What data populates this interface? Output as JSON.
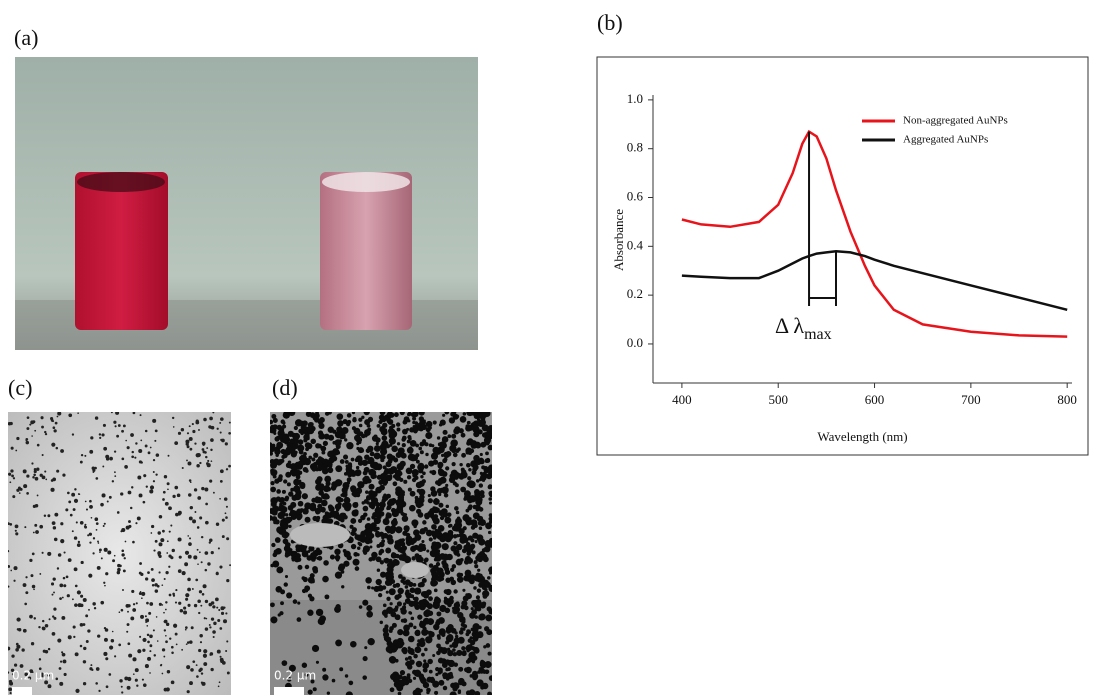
{
  "panels": {
    "a": {
      "label": "(a)"
    },
    "b": {
      "label": "(b)"
    },
    "c": {
      "label": "(c)",
      "scale_bar": "0.2 µm"
    },
    "d": {
      "label": "(d)",
      "scale_bar": "0.2 µm"
    }
  },
  "chart_data": {
    "type": "line",
    "x_label": "Wavelength (nm)",
    "y_label": "Absorbance",
    "x": [
      400,
      420,
      450,
      480,
      500,
      515,
      525,
      532,
      540,
      550,
      560,
      575,
      590,
      600,
      620,
      650,
      700,
      750,
      800
    ],
    "series": [
      {
        "name": "Non-aggregated AuNPs",
        "color": "#e8141b",
        "values": [
          0.51,
          0.49,
          0.48,
          0.5,
          0.57,
          0.7,
          0.82,
          0.87,
          0.85,
          0.76,
          0.63,
          0.46,
          0.32,
          0.24,
          0.14,
          0.08,
          0.05,
          0.035,
          0.03
        ]
      },
      {
        "name": "Aggregated AuNPs",
        "color": "#111111",
        "values": [
          0.28,
          0.275,
          0.27,
          0.27,
          0.3,
          0.33,
          0.35,
          0.36,
          0.37,
          0.375,
          0.38,
          0.375,
          0.36,
          0.345,
          0.32,
          0.29,
          0.24,
          0.19,
          0.14
        ]
      }
    ],
    "xlim": [
      370,
      805
    ],
    "ylim": [
      -0.16,
      1.02
    ],
    "xticks": [
      400,
      500,
      600,
      700,
      800
    ],
    "yticks": [
      {
        "value": 0,
        "label": "0.0"
      },
      0.2,
      0.4,
      0.6,
      0.8,
      {
        "value": 1,
        "label": "1.0"
      }
    ],
    "annotation": {
      "text": "Δ λ",
      "subscript": "max"
    },
    "legend": "upper right",
    "grid": false
  }
}
